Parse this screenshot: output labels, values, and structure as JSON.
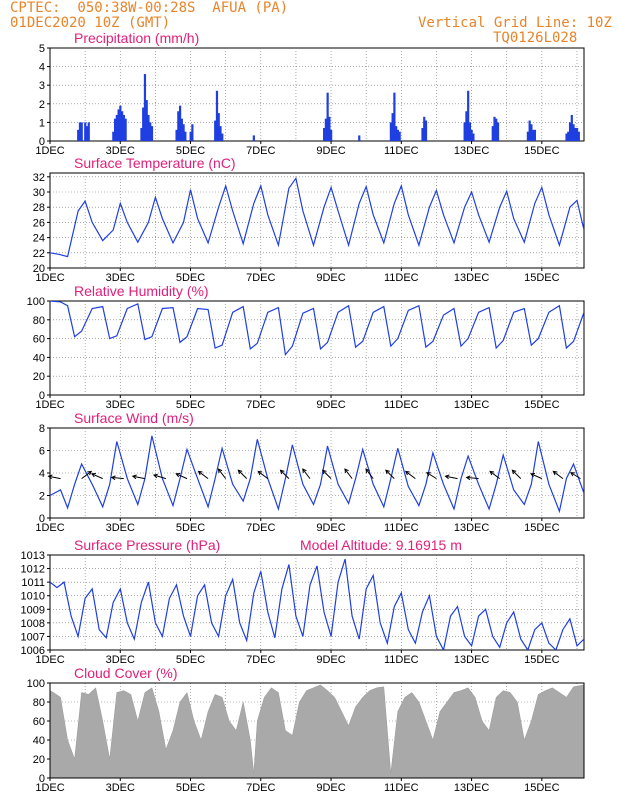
{
  "header": {
    "left_line1": "CPTEC:  050:38W-00:28S  AFUA (PA)",
    "left_line2": "01DEC2020 10Z (GMT)",
    "right_line1": "Vertical Grid Line: 10Z",
    "right_line2": "TQ0126L028"
  },
  "model_altitude": "Model Altitude: 9.16915 m",
  "colors": {
    "header": "#e8842a",
    "title": "#e0207a",
    "series": "#1f3fe0",
    "cloud": "#a9a9a9",
    "wind_arrow": "#000000"
  },
  "x_ticks": [
    "1DEC",
    "3DEC",
    "5DEC",
    "7DEC",
    "9DEC",
    "11DEC",
    "13DEC",
    "15DEC"
  ],
  "chart_data": [
    {
      "type": "bar",
      "title": "Precipitation (mm/h)",
      "ylim": [
        0,
        5
      ],
      "y_ticks": [
        "0",
        "1",
        "2",
        "3",
        "4",
        "5"
      ],
      "x_range_days": [
        1,
        16.2
      ],
      "grid": true,
      "bars": [
        [
          1.8,
          0.6
        ],
        [
          1.85,
          1.0
        ],
        [
          1.9,
          1.0
        ],
        [
          2.0,
          1.0
        ],
        [
          2.05,
          0.8
        ],
        [
          2.1,
          1.0
        ],
        [
          2.8,
          0.5
        ],
        [
          2.85,
          1.2
        ],
        [
          2.9,
          1.4
        ],
        [
          2.95,
          1.7
        ],
        [
          3.0,
          1.9
        ],
        [
          3.05,
          1.6
        ],
        [
          3.1,
          1.4
        ],
        [
          3.15,
          1.2
        ],
        [
          3.6,
          0.7
        ],
        [
          3.65,
          1.8
        ],
        [
          3.7,
          3.6
        ],
        [
          3.75,
          2.2
        ],
        [
          3.8,
          1.4
        ],
        [
          3.85,
          1.0
        ],
        [
          3.9,
          0.8
        ],
        [
          4.6,
          0.6
        ],
        [
          4.65,
          1.6
        ],
        [
          4.7,
          1.9
        ],
        [
          4.75,
          1.2
        ],
        [
          4.8,
          0.9
        ],
        [
          4.85,
          0.5
        ],
        [
          5.0,
          0.5
        ],
        [
          5.05,
          0.9
        ],
        [
          5.7,
          1.1
        ],
        [
          5.75,
          2.7
        ],
        [
          5.8,
          1.5
        ],
        [
          5.85,
          0.8
        ],
        [
          5.9,
          0.4
        ],
        [
          6.8,
          0.3
        ],
        [
          8.8,
          0.7
        ],
        [
          8.85,
          1.2
        ],
        [
          8.9,
          2.6
        ],
        [
          8.95,
          1.3
        ],
        [
          9.0,
          0.6
        ],
        [
          9.8,
          0.3
        ],
        [
          10.7,
          1.0
        ],
        [
          10.75,
          1.5
        ],
        [
          10.8,
          2.6
        ],
        [
          10.85,
          0.8
        ],
        [
          10.9,
          0.6
        ],
        [
          10.95,
          0.5
        ],
        [
          11.6,
          0.7
        ],
        [
          11.65,
          1.3
        ],
        [
          11.7,
          1.1
        ],
        [
          12.8,
          1.0
        ],
        [
          12.85,
          1.6
        ],
        [
          12.9,
          2.7
        ],
        [
          12.95,
          1.0
        ],
        [
          13.0,
          0.6
        ],
        [
          13.05,
          0.4
        ],
        [
          13.6,
          0.8
        ],
        [
          13.65,
          1.3
        ],
        [
          13.7,
          1.2
        ],
        [
          13.75,
          1.0
        ],
        [
          14.6,
          0.5
        ],
        [
          14.65,
          1.1
        ],
        [
          14.7,
          0.9
        ],
        [
          14.75,
          0.6
        ],
        [
          14.8,
          0.6
        ],
        [
          15.7,
          0.4
        ],
        [
          15.75,
          0.5
        ],
        [
          15.8,
          1.0
        ],
        [
          15.85,
          1.4
        ],
        [
          15.9,
          0.9
        ],
        [
          15.95,
          0.7
        ],
        [
          16.0,
          0.7
        ],
        [
          16.05,
          0.5
        ]
      ]
    },
    {
      "type": "line",
      "title": "Surface Temperature (nC)",
      "ylim": [
        20,
        32.5
      ],
      "y_ticks": [
        "20",
        "22",
        "24",
        "26",
        "28",
        "30",
        "32"
      ],
      "grid": true,
      "x": [
        1.0,
        1.25,
        1.5,
        1.8,
        2.0,
        2.2,
        2.5,
        2.8,
        3.0,
        3.2,
        3.5,
        3.8,
        4.0,
        4.2,
        4.5,
        4.8,
        5.0,
        5.2,
        5.5,
        5.8,
        6.0,
        6.2,
        6.5,
        6.8,
        7.0,
        7.2,
        7.5,
        7.8,
        8.0,
        8.2,
        8.5,
        8.8,
        9.0,
        9.2,
        9.5,
        9.8,
        10.0,
        10.2,
        10.5,
        10.8,
        11.0,
        11.2,
        11.5,
        11.8,
        12.0,
        12.2,
        12.5,
        12.8,
        13.0,
        13.2,
        13.5,
        13.8,
        14.0,
        14.2,
        14.5,
        14.8,
        15.0,
        15.2,
        15.5,
        15.8,
        16.0,
        16.2
      ],
      "y": [
        22.0,
        21.8,
        21.5,
        27.5,
        28.8,
        26.0,
        23.6,
        25.0,
        28.5,
        26.0,
        23.4,
        26.0,
        29.3,
        26.5,
        23.3,
        26.0,
        30.3,
        26.5,
        23.3,
        28.0,
        30.8,
        27.5,
        23.2,
        28.5,
        30.8,
        27.0,
        23.0,
        30.5,
        31.8,
        27.5,
        23.0,
        28.0,
        30.6,
        27.5,
        23.0,
        28.5,
        30.7,
        27.0,
        23.3,
        28.5,
        30.8,
        27.0,
        23.0,
        28.0,
        30.2,
        27.0,
        23.3,
        28.0,
        30.0,
        27.0,
        23.4,
        28.0,
        30.1,
        26.5,
        23.4,
        28.5,
        30.6,
        27.0,
        23.0,
        28.0,
        28.9,
        25.0
      ]
    },
    {
      "type": "line",
      "title": "Relative Humidity (%)",
      "ylim": [
        0,
        100
      ],
      "y_ticks": [
        "0",
        "20",
        "40",
        "60",
        "80",
        "100"
      ],
      "grid": true,
      "x": [
        1.0,
        1.3,
        1.5,
        1.7,
        1.9,
        2.2,
        2.5,
        2.7,
        2.9,
        3.2,
        3.5,
        3.7,
        3.9,
        4.2,
        4.5,
        4.7,
        4.9,
        5.2,
        5.5,
        5.7,
        5.9,
        6.2,
        6.5,
        6.7,
        6.9,
        7.2,
        7.5,
        7.7,
        7.9,
        8.2,
        8.5,
        8.7,
        8.9,
        9.2,
        9.5,
        9.7,
        9.9,
        10.2,
        10.5,
        10.7,
        10.9,
        11.2,
        11.5,
        11.7,
        11.9,
        12.2,
        12.5,
        12.7,
        12.9,
        13.2,
        13.5,
        13.7,
        13.9,
        14.2,
        14.5,
        14.7,
        14.9,
        15.2,
        15.5,
        15.7,
        15.9,
        16.2
      ],
      "y": [
        100,
        99,
        95,
        62,
        68,
        92,
        94,
        60,
        63,
        92,
        97,
        59,
        62,
        92,
        93,
        56,
        62,
        92,
        91,
        50,
        53,
        88,
        94,
        49,
        55,
        88,
        93,
        43,
        52,
        87,
        92,
        49,
        56,
        88,
        95,
        51,
        57,
        88,
        94,
        52,
        60,
        90,
        95,
        51,
        57,
        85,
        92,
        52,
        60,
        88,
        93,
        50,
        58,
        88,
        92,
        53,
        60,
        88,
        95,
        50,
        57,
        88
      ]
    },
    {
      "type": "line",
      "title": "Surface Wind (m/s)",
      "ylim": [
        0,
        8
      ],
      "y_ticks": [
        "0",
        "2",
        "4",
        "6",
        "8"
      ],
      "grid": true,
      "x": [
        1.0,
        1.3,
        1.5,
        1.7,
        1.9,
        2.2,
        2.5,
        2.7,
        2.9,
        3.2,
        3.5,
        3.7,
        3.9,
        4.2,
        4.5,
        4.7,
        4.9,
        5.2,
        5.5,
        5.7,
        5.9,
        6.2,
        6.5,
        6.7,
        6.9,
        7.2,
        7.5,
        7.7,
        7.9,
        8.2,
        8.5,
        8.7,
        8.9,
        9.2,
        9.5,
        9.7,
        9.9,
        10.2,
        10.5,
        10.7,
        10.9,
        11.2,
        11.5,
        11.7,
        11.9,
        12.2,
        12.5,
        12.7,
        12.9,
        13.2,
        13.5,
        13.7,
        13.9,
        14.2,
        14.5,
        14.7,
        14.9,
        15.2,
        15.5,
        15.7,
        15.9,
        16.2
      ],
      "y": [
        2.0,
        2.5,
        0.9,
        3.0,
        4.8,
        3.0,
        1.0,
        3.0,
        6.8,
        3.5,
        1.2,
        3.5,
        7.3,
        3.5,
        1.1,
        3.5,
        6.1,
        3.5,
        1.0,
        3.5,
        6.2,
        3.0,
        1.5,
        3.5,
        7.0,
        3.5,
        0.8,
        3.5,
        6.5,
        3.0,
        1.2,
        3.0,
        6.4,
        3.0,
        1.3,
        3.5,
        6.1,
        3.0,
        1.0,
        3.5,
        6.2,
        2.8,
        1.1,
        3.0,
        5.8,
        3.0,
        0.8,
        3.5,
        5.5,
        3.0,
        0.8,
        3.0,
        5.6,
        2.5,
        1.2,
        3.0,
        6.8,
        3.0,
        0.6,
        3.5,
        4.8,
        2.2
      ],
      "arrows": [
        [
          1.3,
          -1,
          0.2
        ],
        [
          1.9,
          0.8,
          0.6
        ],
        [
          2.5,
          -0.9,
          0.4
        ],
        [
          3.1,
          -1,
          0.1
        ],
        [
          3.7,
          -1,
          0.2
        ],
        [
          4.3,
          -1,
          0.3
        ],
        [
          4.9,
          -0.9,
          0.4
        ],
        [
          5.5,
          -0.8,
          0.6
        ],
        [
          6.0,
          -0.6,
          0.8
        ],
        [
          6.6,
          -0.7,
          0.7
        ],
        [
          7.2,
          -0.8,
          0.6
        ],
        [
          7.8,
          -0.7,
          0.7
        ],
        [
          8.4,
          -0.6,
          0.8
        ],
        [
          9.0,
          -0.7,
          0.7
        ],
        [
          9.6,
          -0.6,
          0.8
        ],
        [
          10.2,
          -0.6,
          0.8
        ],
        [
          10.8,
          -0.7,
          0.7
        ],
        [
          11.4,
          -0.8,
          0.6
        ],
        [
          12.0,
          -0.8,
          0.5
        ],
        [
          12.6,
          -1,
          0.2
        ],
        [
          13.2,
          -1,
          0.1
        ],
        [
          13.8,
          -0.8,
          0.6
        ],
        [
          14.4,
          -0.7,
          0.7
        ],
        [
          15.0,
          -0.9,
          0.4
        ],
        [
          15.6,
          -0.8,
          0.6
        ],
        [
          16.1,
          -0.8,
          0.5
        ]
      ]
    },
    {
      "type": "line",
      "title": "Surface Pressure (hPa)",
      "ylim": [
        1006,
        1013
      ],
      "y_ticks": [
        "1006",
        "1007",
        "1008",
        "1009",
        "1010",
        "1011",
        "1012",
        "1013"
      ],
      "grid": true,
      "x": [
        1.0,
        1.2,
        1.4,
        1.6,
        1.8,
        2.0,
        2.2,
        2.4,
        2.6,
        2.8,
        3.0,
        3.2,
        3.4,
        3.6,
        3.8,
        4.0,
        4.2,
        4.4,
        4.6,
        4.8,
        5.0,
        5.2,
        5.4,
        5.6,
        5.8,
        6.0,
        6.2,
        6.4,
        6.6,
        6.8,
        7.0,
        7.2,
        7.4,
        7.6,
        7.8,
        8.0,
        8.2,
        8.4,
        8.6,
        8.8,
        9.0,
        9.2,
        9.4,
        9.6,
        9.8,
        10.0,
        10.2,
        10.4,
        10.6,
        10.8,
        11.0,
        11.2,
        11.4,
        11.6,
        11.8,
        12.0,
        12.2,
        12.4,
        12.6,
        12.8,
        13.0,
        13.2,
        13.4,
        13.6,
        13.8,
        14.0,
        14.2,
        14.4,
        14.6,
        14.8,
        15.0,
        15.2,
        15.4,
        15.6,
        15.8,
        16.0,
        16.2
      ],
      "y": [
        1011.0,
        1010.6,
        1011.0,
        1008.5,
        1007.0,
        1009.8,
        1010.5,
        1007.5,
        1006.9,
        1009.5,
        1010.5,
        1008.0,
        1006.8,
        1009.5,
        1011.0,
        1008.0,
        1007.0,
        1009.8,
        1010.8,
        1008.5,
        1007.0,
        1010.0,
        1010.8,
        1008.0,
        1007.0,
        1010.0,
        1011.2,
        1008.0,
        1006.7,
        1010.2,
        1011.8,
        1008.8,
        1006.9,
        1010.5,
        1012.3,
        1008.5,
        1007.0,
        1010.8,
        1012.2,
        1008.8,
        1007.0,
        1011.0,
        1012.7,
        1008.5,
        1006.8,
        1010.5,
        1011.5,
        1008.0,
        1006.5,
        1009.2,
        1010.2,
        1007.5,
        1006.5,
        1008.8,
        1010.0,
        1007.0,
        1006.0,
        1008.5,
        1009.2,
        1007.0,
        1006.3,
        1008.5,
        1009.0,
        1007.0,
        1006.2,
        1008.0,
        1008.8,
        1006.8,
        1006.0,
        1007.5,
        1008.0,
        1006.5,
        1006.0,
        1007.5,
        1008.3,
        1006.3,
        1006.8
      ]
    },
    {
      "type": "area",
      "title": "Cloud Cover (%)",
      "ylim": [
        0,
        100
      ],
      "y_ticks": [
        "0",
        "20",
        "40",
        "60",
        "80",
        "100"
      ],
      "grid": true,
      "x": [
        1.0,
        1.1,
        1.3,
        1.5,
        1.7,
        1.9,
        2.1,
        2.3,
        2.5,
        2.7,
        2.9,
        3.1,
        3.3,
        3.5,
        3.7,
        3.9,
        4.1,
        4.3,
        4.5,
        4.7,
        4.9,
        5.1,
        5.3,
        5.5,
        5.7,
        5.9,
        6.1,
        6.3,
        6.5,
        6.7,
        6.8,
        6.9,
        7.1,
        7.3,
        7.5,
        7.7,
        7.9,
        8.1,
        8.3,
        8.5,
        8.7,
        8.9,
        9.1,
        9.3,
        9.5,
        9.7,
        9.9,
        10.1,
        10.3,
        10.5,
        10.7,
        10.9,
        11.1,
        11.3,
        11.5,
        11.7,
        11.9,
        12.1,
        12.3,
        12.5,
        12.7,
        12.9,
        13.1,
        13.3,
        13.5,
        13.7,
        13.9,
        14.1,
        14.3,
        14.5,
        14.7,
        14.9,
        15.1,
        15.3,
        15.5,
        15.7,
        15.9,
        16.2
      ],
      "y": [
        92,
        90,
        85,
        40,
        20,
        90,
        88,
        95,
        60,
        20,
        90,
        92,
        88,
        60,
        90,
        95,
        70,
        30,
        50,
        80,
        90,
        60,
        40,
        70,
        88,
        85,
        60,
        50,
        80,
        40,
        5,
        60,
        85,
        95,
        90,
        50,
        45,
        80,
        92,
        95,
        98,
        92,
        85,
        70,
        55,
        75,
        85,
        92,
        95,
        96,
        5,
        70,
        85,
        90,
        80,
        60,
        40,
        70,
        80,
        90,
        92,
        95,
        85,
        60,
        50,
        85,
        92,
        90,
        80,
        40,
        60,
        88,
        92,
        95,
        90,
        85,
        96,
        98
      ]
    }
  ]
}
